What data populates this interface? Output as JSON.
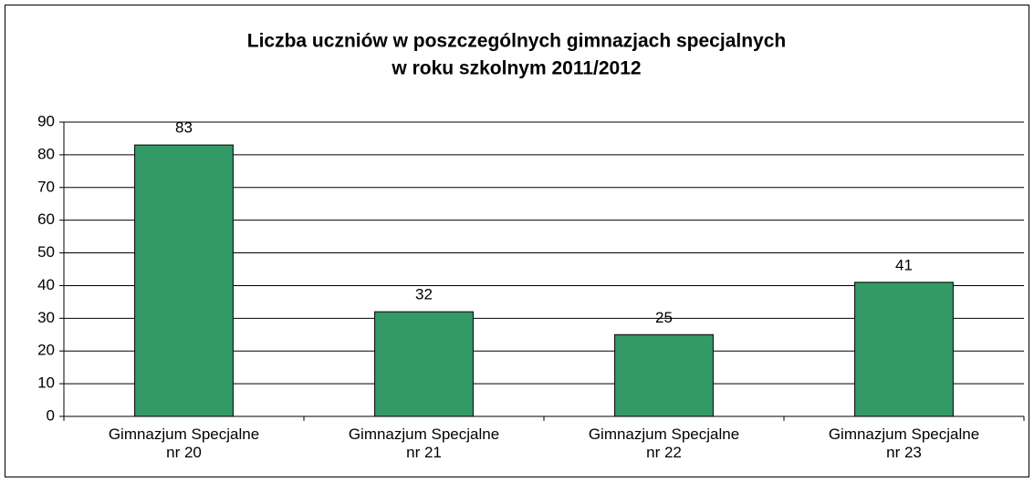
{
  "chart_data": {
    "type": "bar",
    "title": [
      "Liczba uczniów w poszczególnych gimnazjach specjalnych",
      "w roku szkolnym 2011/2012"
    ],
    "categories": [
      "Gimnazjum Specjalne nr 20",
      "Gimnazjum Specjalne nr 21",
      "Gimnazjum Specjalne nr 22",
      "Gimnazjum Specjalne nr 23"
    ],
    "values": [
      83,
      32,
      25,
      41
    ],
    "color": "#339966",
    "ylim": [
      0,
      90
    ],
    "yticks": [
      0,
      10,
      20,
      30,
      40,
      50,
      60,
      70,
      80,
      90
    ],
    "grid": true
  }
}
